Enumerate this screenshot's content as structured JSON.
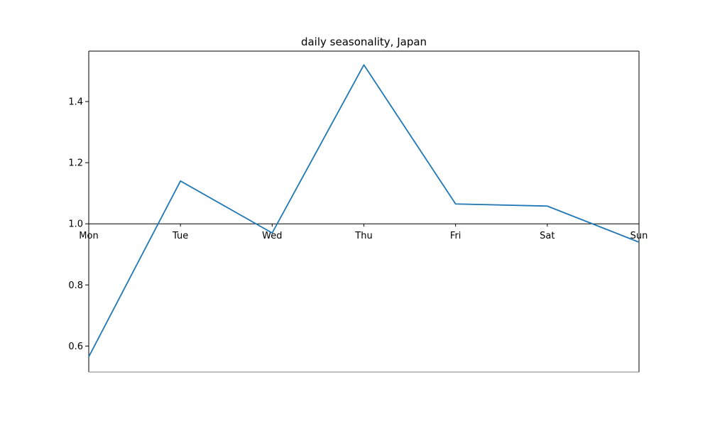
{
  "chart_data": {
    "type": "line",
    "title": "daily seasonality, Japan",
    "xlabel": "",
    "ylabel": "",
    "categories": [
      "Mon",
      "Tue",
      "Wed",
      "Thu",
      "Fri",
      "Sat",
      "Sun"
    ],
    "series": [
      {
        "values": [
          0.565,
          1.14,
          0.97,
          1.52,
          1.065,
          1.058,
          0.94
        ],
        "color": "#1f77b4"
      }
    ],
    "ylim": [
      0.515,
      1.565
    ],
    "yticks": [
      "0.6",
      "0.8",
      "1.0",
      "1.2",
      "1.4"
    ],
    "baseline": 1.0,
    "grid": false,
    "legend": "none"
  }
}
